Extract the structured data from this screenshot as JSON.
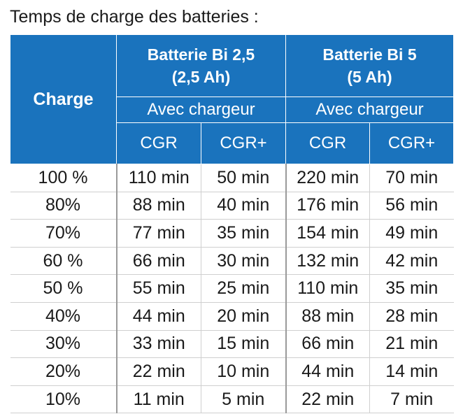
{
  "title": "Temps de charge des batteries :",
  "header": {
    "charge": "Charge",
    "battery_groups": [
      {
        "line1": "Batterie Bi 2,5",
        "line2": "(2,5 Ah)",
        "charger_label": "Avec chargeur",
        "cols": [
          "CGR",
          "CGR+"
        ]
      },
      {
        "line1": "Batterie Bi 5",
        "line2": "(5 Ah)",
        "charger_label": "Avec chargeur",
        "cols": [
          "CGR",
          "CGR+"
        ]
      }
    ]
  },
  "rows": [
    [
      "100 %",
      "110 min",
      "50 min",
      "220 min",
      "70 min"
    ],
    [
      "80%",
      "88 min",
      "40 min",
      "176 min",
      "56 min"
    ],
    [
      "70%",
      "77 min",
      "35 min",
      "154 min",
      "49 min"
    ],
    [
      "60 %",
      "66 min",
      "30 min",
      "132 min",
      "42 min"
    ],
    [
      "50 %",
      "55 min",
      "25 min",
      "110 min",
      "35 min"
    ],
    [
      "40%",
      "44 min",
      "20 min",
      "88 min",
      "28 min"
    ],
    [
      "30%",
      "33 min",
      "15 min",
      "66 min",
      "21 min"
    ],
    [
      "20%",
      "22 min",
      "10 min",
      "44 min",
      "14 min"
    ],
    [
      "10%",
      "11 min",
      "5 min",
      "22 min",
      "7 min"
    ]
  ],
  "colors": {
    "header_bg": "#1a73bd",
    "header_text": "#ffffff"
  }
}
